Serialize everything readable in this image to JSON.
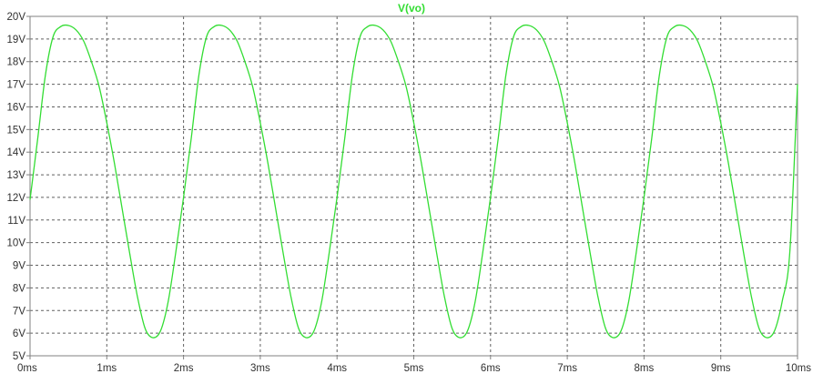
{
  "chart_data": {
    "type": "line",
    "title": "V(vo)",
    "x_ticks": [
      "0ms",
      "1ms",
      "2ms",
      "3ms",
      "4ms",
      "5ms",
      "6ms",
      "7ms",
      "8ms",
      "9ms",
      "10ms"
    ],
    "y_ticks": [
      "5V",
      "6V",
      "7V",
      "8V",
      "9V",
      "10V",
      "11V",
      "12V",
      "13V",
      "14V",
      "15V",
      "16V",
      "17V",
      "18V",
      "19V",
      "20V"
    ],
    "xlim": [
      0,
      10
    ],
    "ylim": [
      5,
      20
    ],
    "x_unit": "ms",
    "y_unit": "V",
    "grid": true,
    "series": [
      {
        "name": "V(vo)",
        "color": "#33dd33",
        "points": [
          [
            0.0,
            11.9
          ],
          [
            0.1,
            14.6
          ],
          [
            0.2,
            17.4
          ],
          [
            0.3,
            19.1
          ],
          [
            0.4,
            19.55
          ],
          [
            0.5,
            19.6
          ],
          [
            0.6,
            19.4
          ],
          [
            0.7,
            18.9
          ],
          [
            0.8,
            18.0
          ],
          [
            0.9,
            16.9
          ],
          [
            1.0,
            15.3
          ],
          [
            1.1,
            13.5
          ],
          [
            1.2,
            11.5
          ],
          [
            1.3,
            9.5
          ],
          [
            1.4,
            7.6
          ],
          [
            1.5,
            6.2
          ],
          [
            1.6,
            5.8
          ],
          [
            1.7,
            6.1
          ],
          [
            1.8,
            7.4
          ],
          [
            1.9,
            9.6
          ],
          [
            2.0,
            12.0
          ],
          [
            2.1,
            14.6
          ],
          [
            2.2,
            17.4
          ],
          [
            2.3,
            19.1
          ],
          [
            2.4,
            19.55
          ],
          [
            2.5,
            19.6
          ],
          [
            2.6,
            19.4
          ],
          [
            2.7,
            18.9
          ],
          [
            2.8,
            18.0
          ],
          [
            2.9,
            16.9
          ],
          [
            3.0,
            15.3
          ],
          [
            3.1,
            13.5
          ],
          [
            3.2,
            11.5
          ],
          [
            3.3,
            9.5
          ],
          [
            3.4,
            7.6
          ],
          [
            3.5,
            6.2
          ],
          [
            3.6,
            5.8
          ],
          [
            3.7,
            6.1
          ],
          [
            3.8,
            7.4
          ],
          [
            3.9,
            9.6
          ],
          [
            4.0,
            12.0
          ],
          [
            4.1,
            14.6
          ],
          [
            4.2,
            17.4
          ],
          [
            4.3,
            19.1
          ],
          [
            4.4,
            19.55
          ],
          [
            4.5,
            19.6
          ],
          [
            4.6,
            19.4
          ],
          [
            4.7,
            18.9
          ],
          [
            4.8,
            18.0
          ],
          [
            4.9,
            16.9
          ],
          [
            5.0,
            15.3
          ],
          [
            5.1,
            13.5
          ],
          [
            5.2,
            11.5
          ],
          [
            5.3,
            9.5
          ],
          [
            5.4,
            7.6
          ],
          [
            5.5,
            6.2
          ],
          [
            5.6,
            5.8
          ],
          [
            5.7,
            6.1
          ],
          [
            5.8,
            7.4
          ],
          [
            5.9,
            9.6
          ],
          [
            6.0,
            12.0
          ],
          [
            6.1,
            14.6
          ],
          [
            6.2,
            17.4
          ],
          [
            6.3,
            19.1
          ],
          [
            6.4,
            19.55
          ],
          [
            6.5,
            19.6
          ],
          [
            6.6,
            19.4
          ],
          [
            6.7,
            18.9
          ],
          [
            6.8,
            18.0
          ],
          [
            6.9,
            16.9
          ],
          [
            7.0,
            15.3
          ],
          [
            7.1,
            13.5
          ],
          [
            7.2,
            11.5
          ],
          [
            7.3,
            9.5
          ],
          [
            7.4,
            7.6
          ],
          [
            7.5,
            6.2
          ],
          [
            7.6,
            5.8
          ],
          [
            7.7,
            6.1
          ],
          [
            7.8,
            7.4
          ],
          [
            7.9,
            9.6
          ],
          [
            8.0,
            12.0
          ],
          [
            8.1,
            14.6
          ],
          [
            8.2,
            17.4
          ],
          [
            8.3,
            19.1
          ],
          [
            8.4,
            19.55
          ],
          [
            8.5,
            19.6
          ],
          [
            8.6,
            19.4
          ],
          [
            8.7,
            18.9
          ],
          [
            8.8,
            18.0
          ],
          [
            8.9,
            16.9
          ],
          [
            9.0,
            15.3
          ],
          [
            9.1,
            13.5
          ],
          [
            9.2,
            11.5
          ],
          [
            9.3,
            9.5
          ],
          [
            9.4,
            7.6
          ],
          [
            9.5,
            6.2
          ],
          [
            9.6,
            5.8
          ],
          [
            9.7,
            6.1
          ],
          [
            9.8,
            7.4
          ],
          [
            9.9,
            9.6
          ],
          [
            10.0,
            17.0
          ]
        ]
      }
    ]
  },
  "colors": {
    "trace": "#33dd33",
    "grid": "#606060",
    "axis": "#808080",
    "tick_text": "#303030"
  }
}
